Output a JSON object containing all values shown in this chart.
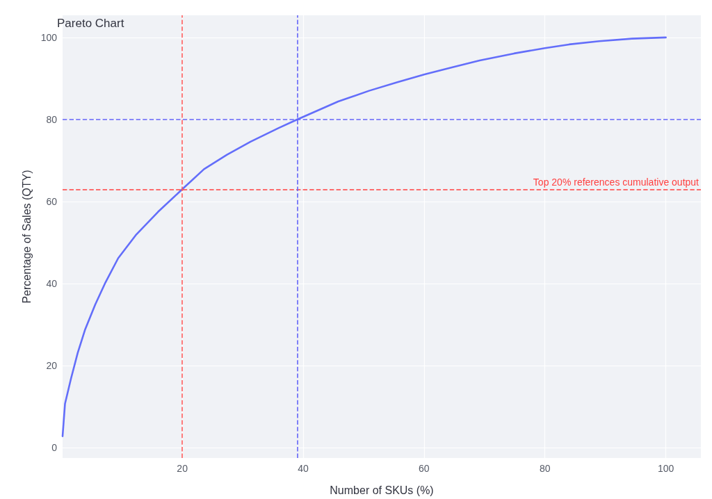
{
  "chart_data": {
    "type": "line",
    "title": "Pareto Chart",
    "xlabel": "Number of SKUs (%)",
    "ylabel": "Percentage of Sales (QTY)",
    "x": [
      0.2,
      0.6,
      1.6,
      2.7,
      3.9,
      5.6,
      7.3,
      9.4,
      12.3,
      16,
      20,
      23.6,
      27.4,
      31.3,
      35.9,
      39,
      45.8,
      50.9,
      55.6,
      60.1,
      64.6,
      69.2,
      74.9,
      80,
      84,
      89,
      94.4,
      100
    ],
    "series": [
      {
        "color": "#636efa",
        "values": [
          2.8,
          10.7,
          16.9,
          23.1,
          28.7,
          34.9,
          40.3,
          46.2,
          51.8,
          57.5,
          63,
          67.9,
          71.4,
          74.6,
          77.9,
          80,
          84.4,
          87,
          89.1,
          91,
          92.7,
          94.4,
          96.1,
          97.4,
          98.3,
          99.1,
          99.7,
          100
        ]
      }
    ],
    "xlim": [
      0.2,
      105.8
    ],
    "xticks": [
      20,
      40,
      60,
      80,
      100
    ],
    "ylim": [
      -2.5,
      105.4
    ],
    "yticks": [
      0,
      20,
      40,
      60,
      80,
      100
    ],
    "grid": true,
    "ref_lines": [
      {
        "axis": "x",
        "value": 20,
        "color": "#ff5c5c",
        "line_style": "dashed"
      },
      {
        "axis": "y",
        "value": 63,
        "label": "Top 20% references cumulative output",
        "color": "#ff4040",
        "line_style": "dashed"
      },
      {
        "axis": "x",
        "value": 39,
        "color": "#6363f8",
        "line_style": "dashed"
      },
      {
        "axis": "y",
        "value": 80,
        "color": "#6363f8",
        "line_style": "dashed"
      }
    ]
  }
}
